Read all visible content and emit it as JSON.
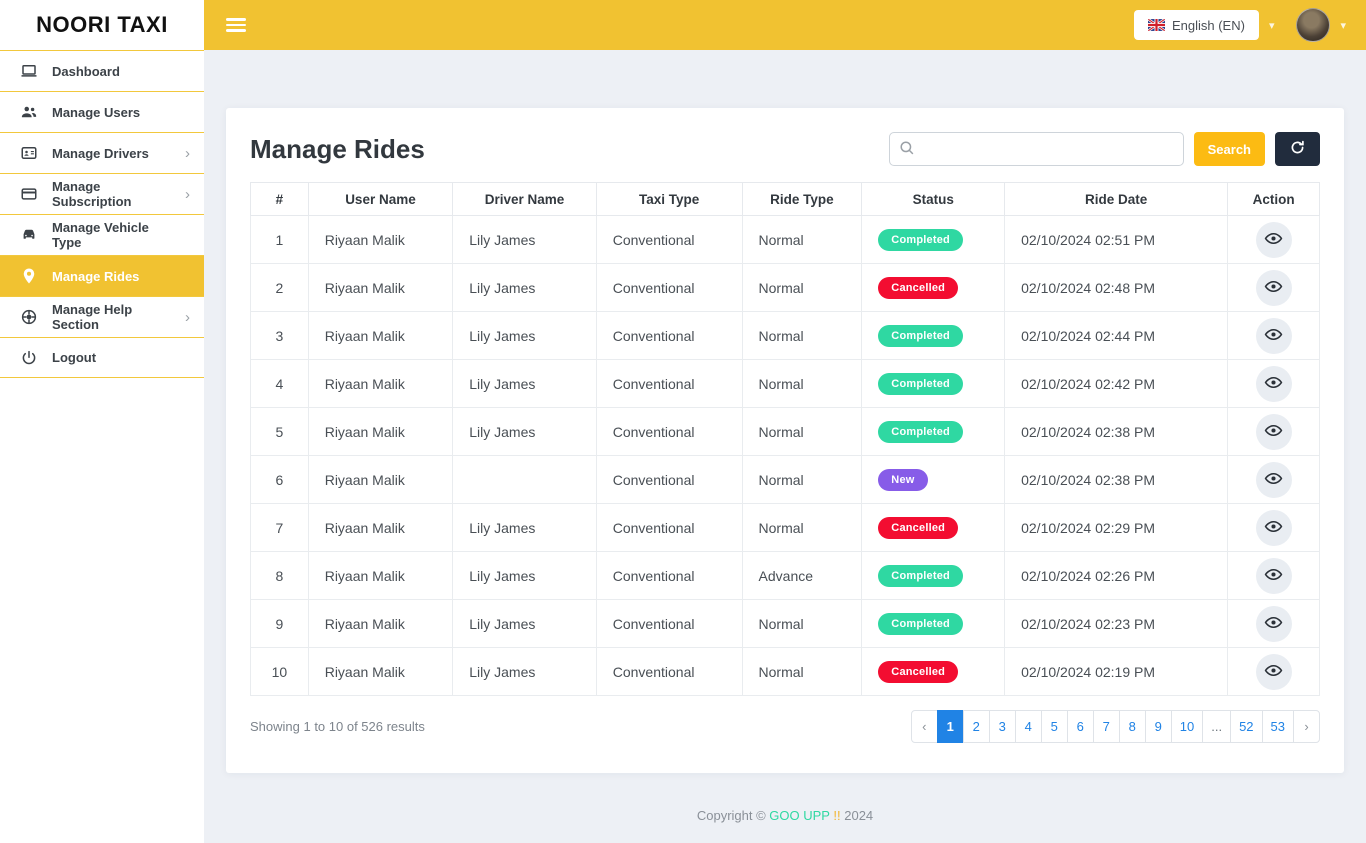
{
  "brand": {
    "logo": "NOORI TAXI"
  },
  "topbar": {
    "language": "English (EN)",
    "language_caret": "▾",
    "avatar_caret": "▾"
  },
  "sidebar": {
    "items": [
      {
        "label": "Dashboard",
        "icon": "monitor",
        "active": false,
        "chevron": false
      },
      {
        "label": "Manage Users",
        "icon": "users",
        "active": false,
        "chevron": false
      },
      {
        "label": "Manage Drivers",
        "icon": "id-card",
        "active": false,
        "chevron": true
      },
      {
        "label": "Manage Subscription",
        "icon": "credit-card",
        "active": false,
        "chevron": true
      },
      {
        "label": "Manage Vehicle Type",
        "icon": "car",
        "active": false,
        "chevron": false
      },
      {
        "label": "Manage Rides",
        "icon": "map-pin",
        "active": true,
        "chevron": false
      },
      {
        "label": "Manage Help Section",
        "icon": "help-wheel",
        "active": false,
        "chevron": true
      },
      {
        "label": "Logout",
        "icon": "power",
        "active": false,
        "chevron": false
      }
    ]
  },
  "page": {
    "title": "Manage Rides"
  },
  "search": {
    "value": "",
    "placeholder": "",
    "button_label": "Search"
  },
  "table": {
    "columns": [
      "#",
      "User Name",
      "Driver Name",
      "Taxi Type",
      "Ride Type",
      "Status",
      "Ride Date",
      "Action"
    ],
    "rows": [
      {
        "num": "1",
        "user": "Riyaan Malik",
        "driver": "Lily James",
        "taxi_type": "Conventional",
        "ride_type": "Normal",
        "status": "Completed",
        "date": "02/10/2024 02:51 PM"
      },
      {
        "num": "2",
        "user": "Riyaan Malik",
        "driver": "Lily James",
        "taxi_type": "Conventional",
        "ride_type": "Normal",
        "status": "Cancelled",
        "date": "02/10/2024 02:48 PM"
      },
      {
        "num": "3",
        "user": "Riyaan Malik",
        "driver": "Lily James",
        "taxi_type": "Conventional",
        "ride_type": "Normal",
        "status": "Completed",
        "date": "02/10/2024 02:44 PM"
      },
      {
        "num": "4",
        "user": "Riyaan Malik",
        "driver": "Lily James",
        "taxi_type": "Conventional",
        "ride_type": "Normal",
        "status": "Completed",
        "date": "02/10/2024 02:42 PM"
      },
      {
        "num": "5",
        "user": "Riyaan Malik",
        "driver": "Lily James",
        "taxi_type": "Conventional",
        "ride_type": "Normal",
        "status": "Completed",
        "date": "02/10/2024 02:38 PM"
      },
      {
        "num": "6",
        "user": "Riyaan Malik",
        "driver": "",
        "taxi_type": "Conventional",
        "ride_type": "Normal",
        "status": "New",
        "date": "02/10/2024 02:38 PM"
      },
      {
        "num": "7",
        "user": "Riyaan Malik",
        "driver": "Lily James",
        "taxi_type": "Conventional",
        "ride_type": "Normal",
        "status": "Cancelled",
        "date": "02/10/2024 02:29 PM"
      },
      {
        "num": "8",
        "user": "Riyaan Malik",
        "driver": "Lily James",
        "taxi_type": "Conventional",
        "ride_type": "Advance",
        "status": "Completed",
        "date": "02/10/2024 02:26 PM"
      },
      {
        "num": "9",
        "user": "Riyaan Malik",
        "driver": "Lily James",
        "taxi_type": "Conventional",
        "ride_type": "Normal",
        "status": "Completed",
        "date": "02/10/2024 02:23 PM"
      },
      {
        "num": "10",
        "user": "Riyaan Malik",
        "driver": "Lily James",
        "taxi_type": "Conventional",
        "ride_type": "Normal",
        "status": "Cancelled",
        "date": "02/10/2024 02:19 PM"
      }
    ]
  },
  "status_colors": {
    "Completed": "#2fd8a2",
    "Cancelled": "#f30d31",
    "New": "#875ce8"
  },
  "pagination": {
    "summary": "Showing 1 to 10 of 526 results",
    "prev": "‹",
    "next": "›",
    "pages": [
      "1",
      "2",
      "3",
      "4",
      "5",
      "6",
      "7",
      "8",
      "9",
      "10",
      "...",
      "52",
      "53"
    ],
    "active": "1"
  },
  "footer": {
    "prefix": "Copyright ©",
    "brand": "GOO UPP",
    "bang": "!!",
    "year": "2024"
  },
  "colors": {
    "accent": "#f1c231",
    "search_button": "#fcbb13",
    "dark_button": "#212c3d",
    "pagination_active": "#2083e5"
  }
}
